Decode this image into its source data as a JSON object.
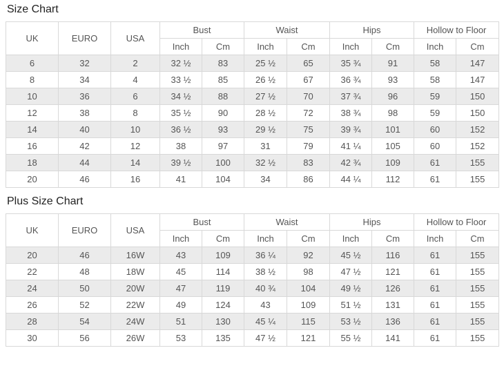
{
  "colors": {
    "stripe": "#ebebeb",
    "border": "#d8d8d8",
    "text": "#555555",
    "title": "#222222",
    "background": "#ffffff"
  },
  "header": {
    "main": [
      "UK",
      "EURO",
      "USA"
    ],
    "groups": [
      "Bust",
      "Waist",
      "Hips",
      "Hollow to Floor"
    ],
    "sub": [
      "Inch",
      "Cm"
    ]
  },
  "column_keys": [
    "uk",
    "euro",
    "usa",
    "bust-inch",
    "bust-cm",
    "waist-inch",
    "waist-cm",
    "hips-inch",
    "hips-cm",
    "hollow-inch",
    "hollow-cm"
  ],
  "tables": [
    {
      "title": "Size Chart",
      "rows": [
        [
          "6",
          "32",
          "2",
          "32 ½",
          "83",
          "25 ½",
          "65",
          "35 ¾",
          "91",
          "58",
          "147"
        ],
        [
          "8",
          "34",
          "4",
          "33 ½",
          "85",
          "26 ½",
          "67",
          "36 ¾",
          "93",
          "58",
          "147"
        ],
        [
          "10",
          "36",
          "6",
          "34 ½",
          "88",
          "27 ½",
          "70",
          "37 ¾",
          "96",
          "59",
          "150"
        ],
        [
          "12",
          "38",
          "8",
          "35 ½",
          "90",
          "28 ½",
          "72",
          "38 ¾",
          "98",
          "59",
          "150"
        ],
        [
          "14",
          "40",
          "10",
          "36 ½",
          "93",
          "29 ½",
          "75",
          "39 ¾",
          "101",
          "60",
          "152"
        ],
        [
          "16",
          "42",
          "12",
          "38",
          "97",
          "31",
          "79",
          "41 ¼",
          "105",
          "60",
          "152"
        ],
        [
          "18",
          "44",
          "14",
          "39 ½",
          "100",
          "32 ½",
          "83",
          "42 ¾",
          "109",
          "61",
          "155"
        ],
        [
          "20",
          "46",
          "16",
          "41",
          "104",
          "34",
          "86",
          "44 ¼",
          "112",
          "61",
          "155"
        ]
      ]
    },
    {
      "title": "Plus Size Chart",
      "rows": [
        [
          "20",
          "46",
          "16W",
          "43",
          "109",
          "36 ¼",
          "92",
          "45 ½",
          "116",
          "61",
          "155"
        ],
        [
          "22",
          "48",
          "18W",
          "45",
          "114",
          "38 ½",
          "98",
          "47 ½",
          "121",
          "61",
          "155"
        ],
        [
          "24",
          "50",
          "20W",
          "47",
          "119",
          "40 ¾",
          "104",
          "49 ½",
          "126",
          "61",
          "155"
        ],
        [
          "26",
          "52",
          "22W",
          "49",
          "124",
          "43",
          "109",
          "51 ½",
          "131",
          "61",
          "155"
        ],
        [
          "28",
          "54",
          "24W",
          "51",
          "130",
          "45 ¼",
          "115",
          "53 ½",
          "136",
          "61",
          "155"
        ],
        [
          "30",
          "56",
          "26W",
          "53",
          "135",
          "47 ½",
          "121",
          "55 ½",
          "141",
          "61",
          "155"
        ]
      ]
    }
  ]
}
